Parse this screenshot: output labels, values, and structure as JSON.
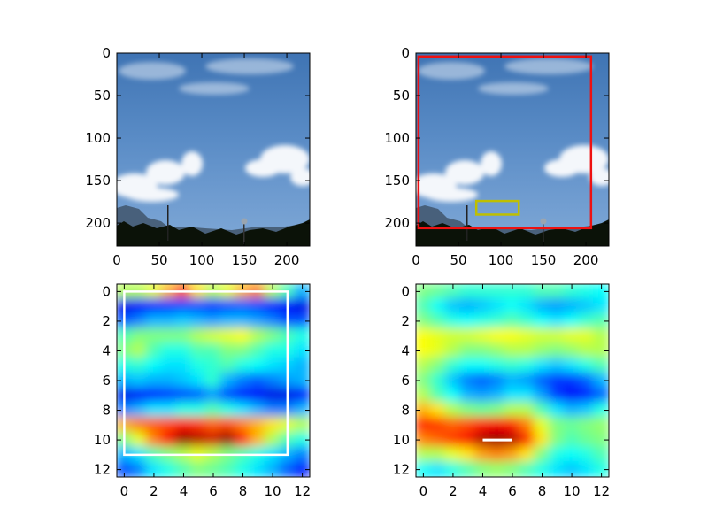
{
  "chart_data": [
    {
      "type": "image",
      "description_source": "sky photograph",
      "xlim": [
        0,
        227
      ],
      "ylim": [
        227,
        0
      ],
      "xticks": [
        0,
        50,
        100,
        150,
        200
      ],
      "yticks": [
        0,
        50,
        100,
        150,
        200
      ],
      "boxes": []
    },
    {
      "type": "image",
      "description_source": "sky photograph",
      "xlim": [
        0,
        227
      ],
      "ylim": [
        227,
        0
      ],
      "xticks": [
        0,
        50,
        100,
        150,
        200
      ],
      "yticks": [
        0,
        50,
        100,
        150,
        200
      ],
      "boxes": [
        {
          "color": "#ee1111",
          "x0": 3,
          "y0": 4,
          "x1": 206,
          "y1": 206
        },
        {
          "color": "#bfbf00",
          "x0": 71,
          "y0": 174,
          "x1": 121,
          "y1": 190
        }
      ]
    },
    {
      "type": "heatmap",
      "colormap": "jet",
      "xlim": [
        -0.5,
        12.5
      ],
      "ylim": [
        12.5,
        -0.5
      ],
      "xticks": [
        0,
        2,
        4,
        6,
        8,
        10,
        12
      ],
      "yticks": [
        0,
        2,
        4,
        6,
        8,
        10,
        12
      ],
      "boxes": [
        {
          "color": "#ffffff",
          "x0": 0,
          "y0": 0,
          "x1": 11,
          "y1": 11
        }
      ],
      "values": [
        [
          0.55,
          0.55,
          0.6,
          0.7,
          0.8,
          0.65,
          0.55,
          0.6,
          0.7,
          0.75,
          0.55,
          0.45,
          0.3
        ],
        [
          0.1,
          0.12,
          0.15,
          0.18,
          0.2,
          0.2,
          0.18,
          0.2,
          0.22,
          0.2,
          0.15,
          0.12,
          0.1
        ],
        [
          0.2,
          0.25,
          0.3,
          0.3,
          0.32,
          0.3,
          0.28,
          0.3,
          0.3,
          0.28,
          0.25,
          0.2,
          0.2
        ],
        [
          0.45,
          0.5,
          0.5,
          0.5,
          0.5,
          0.55,
          0.58,
          0.6,
          0.62,
          0.55,
          0.5,
          0.45,
          0.4
        ],
        [
          0.5,
          0.55,
          0.45,
          0.4,
          0.4,
          0.45,
          0.45,
          0.5,
          0.5,
          0.45,
          0.4,
          0.4,
          0.35
        ],
        [
          0.4,
          0.42,
          0.38,
          0.35,
          0.35,
          0.4,
          0.42,
          0.45,
          0.4,
          0.38,
          0.35,
          0.33,
          0.3
        ],
        [
          0.3,
          0.32,
          0.3,
          0.3,
          0.32,
          0.35,
          0.42,
          0.3,
          0.25,
          0.22,
          0.25,
          0.28,
          0.3
        ],
        [
          0.1,
          0.12,
          0.15,
          0.18,
          0.2,
          0.22,
          0.28,
          0.2,
          0.15,
          0.12,
          0.1,
          0.1,
          0.12
        ],
        [
          0.25,
          0.3,
          0.35,
          0.35,
          0.4,
          0.4,
          0.45,
          0.4,
          0.35,
          0.3,
          0.25,
          0.25,
          0.3
        ],
        [
          0.7,
          0.75,
          0.78,
          0.8,
          0.85,
          0.82,
          0.78,
          0.8,
          0.75,
          0.7,
          0.65,
          0.6,
          0.55
        ],
        [
          0.5,
          0.6,
          0.75,
          0.88,
          0.98,
          0.95,
          0.92,
          0.98,
          0.85,
          0.7,
          0.55,
          0.45,
          0.4
        ],
        [
          0.3,
          0.35,
          0.45,
          0.5,
          0.55,
          0.6,
          0.55,
          0.5,
          0.45,
          0.4,
          0.35,
          0.3,
          0.25
        ],
        [
          0.2,
          0.25,
          0.35,
          0.4,
          0.45,
          0.5,
          0.48,
          0.45,
          0.4,
          0.35,
          0.3,
          0.22,
          0.15
        ]
      ]
    },
    {
      "type": "heatmap",
      "colormap": "jet",
      "xlim": [
        -0.5,
        12.5
      ],
      "ylim": [
        12.5,
        -0.5
      ],
      "xticks": [
        0,
        2,
        4,
        6,
        8,
        10,
        12
      ],
      "yticks": [
        0,
        2,
        4,
        6,
        8,
        10,
        12
      ],
      "boxes": [
        {
          "color": "#ffffff",
          "x0": 4,
          "y0": 10,
          "x1": 6,
          "y1": 10
        }
      ],
      "values": [
        [
          0.5,
          0.48,
          0.45,
          0.42,
          0.42,
          0.42,
          0.42,
          0.42,
          0.45,
          0.45,
          0.42,
          0.4,
          0.38
        ],
        [
          0.45,
          0.38,
          0.32,
          0.3,
          0.32,
          0.35,
          0.38,
          0.35,
          0.3,
          0.28,
          0.3,
          0.32,
          0.35
        ],
        [
          0.5,
          0.45,
          0.4,
          0.38,
          0.4,
          0.42,
          0.45,
          0.42,
          0.38,
          0.35,
          0.38,
          0.42,
          0.45
        ],
        [
          0.62,
          0.6,
          0.58,
          0.58,
          0.6,
          0.62,
          0.62,
          0.6,
          0.58,
          0.58,
          0.6,
          0.6,
          0.55
        ],
        [
          0.62,
          0.6,
          0.55,
          0.5,
          0.5,
          0.52,
          0.55,
          0.55,
          0.52,
          0.5,
          0.52,
          0.55,
          0.55
        ],
        [
          0.55,
          0.5,
          0.42,
          0.38,
          0.38,
          0.4,
          0.42,
          0.4,
          0.35,
          0.32,
          0.35,
          0.4,
          0.45
        ],
        [
          0.5,
          0.42,
          0.32,
          0.25,
          0.22,
          0.25,
          0.3,
          0.28,
          0.22,
          0.18,
          0.18,
          0.22,
          0.3
        ],
        [
          0.55,
          0.45,
          0.38,
          0.3,
          0.28,
          0.3,
          0.35,
          0.35,
          0.28,
          0.18,
          0.12,
          0.15,
          0.22
        ],
        [
          0.7,
          0.65,
          0.55,
          0.5,
          0.48,
          0.5,
          0.55,
          0.55,
          0.45,
          0.35,
          0.3,
          0.32,
          0.4
        ],
        [
          0.85,
          0.82,
          0.78,
          0.8,
          0.85,
          0.88,
          0.85,
          0.75,
          0.6,
          0.5,
          0.48,
          0.5,
          0.52
        ],
        [
          0.75,
          0.78,
          0.82,
          0.88,
          0.95,
          0.98,
          0.95,
          0.85,
          0.65,
          0.5,
          0.45,
          0.48,
          0.5
        ],
        [
          0.55,
          0.55,
          0.6,
          0.65,
          0.72,
          0.75,
          0.72,
          0.65,
          0.5,
          0.4,
          0.38,
          0.4,
          0.45
        ],
        [
          0.38,
          0.35,
          0.4,
          0.45,
          0.5,
          0.52,
          0.5,
          0.45,
          0.4,
          0.35,
          0.32,
          0.35,
          0.4
        ]
      ]
    }
  ]
}
